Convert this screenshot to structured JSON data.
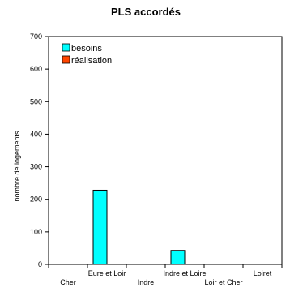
{
  "chart_data": {
    "type": "bar",
    "title": "PLS accordés",
    "ylabel": "nombre de logements",
    "xlabel": "",
    "categories": [
      "Cher",
      "Eure et Loir",
      "Indre",
      "Indre et Loire",
      "Loir et Cher",
      "Loiret"
    ],
    "series": [
      {
        "name": "besoins",
        "color": "#00ffff",
        "values": [
          0,
          228,
          0,
          43,
          0,
          0
        ]
      },
      {
        "name": "réalisation",
        "color": "#ff4500",
        "values": [
          0,
          0,
          0,
          0,
          0,
          0
        ]
      }
    ],
    "ylim": [
      0,
      700
    ],
    "yticks": [
      0,
      100,
      200,
      300,
      400,
      500,
      600,
      700
    ],
    "grid": false,
    "legend_position": "top-left"
  }
}
